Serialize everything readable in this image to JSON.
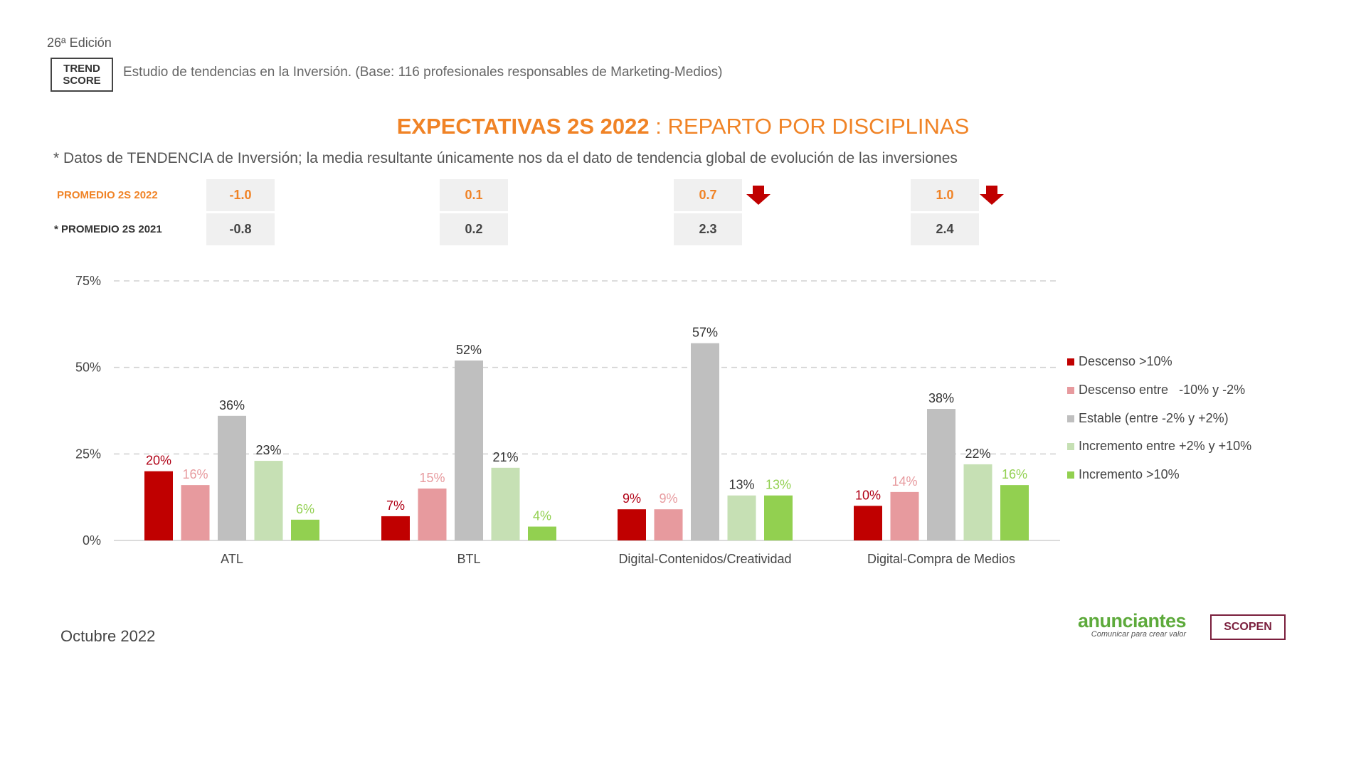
{
  "header": {
    "edition": "26ª Edición",
    "logo_line1": "TREND",
    "logo_line2": "SCORE",
    "study": "Estudio de tendencias en la Inversión. (Base: 116 profesionales responsables de Marketing-Medios)"
  },
  "title_bold": "EXPECTATIVAS 2S 2022",
  "title_rest": " : REPARTO POR DISCIPLINAS",
  "note": "* Datos de TENDENCIA de Inversión; la media resultante únicamente nos da el dato de tendencia global de evolución de las inversiones",
  "averages": {
    "label_2022": "PROMEDIO 2S 2022",
    "label_2021": "* PROMEDIO 2S 2021",
    "values_2022": [
      "-1.0",
      "0.1",
      "0.7",
      "1.0"
    ],
    "values_2021": [
      "-0.8",
      "0.2",
      "2.3",
      "2.4"
    ],
    "down_arrows": [
      false,
      false,
      true,
      true
    ],
    "arrow_color": "#c00000"
  },
  "chart_data": {
    "type": "bar",
    "categories": [
      "ATL",
      "BTL",
      "Digital-Contenidos/Creatividad",
      "Digital-Compra de Medios"
    ],
    "series": [
      {
        "name": "Descenso >10%",
        "color": "#c00000",
        "label_color": "#b00015",
        "values": [
          20,
          7,
          9,
          10
        ]
      },
      {
        "name": "Descenso entre   -10% y -2%",
        "color": "#e79a9e",
        "label_color": "#e79a9e",
        "values": [
          16,
          15,
          9,
          14
        ]
      },
      {
        "name": "Estable (entre -2% y +2%)",
        "color": "#bfbfbf",
        "label_color": "#333333",
        "values": [
          36,
          52,
          57,
          38
        ]
      },
      {
        "name": "Incremento entre +2% y +10%",
        "color": "#c6e0b4",
        "label_color": "#333333",
        "values": [
          23,
          21,
          13,
          22
        ]
      },
      {
        "name": "Incremento >10%",
        "color": "#92d050",
        "label_color": "#92d050",
        "values": [
          6,
          4,
          13,
          16
        ]
      }
    ],
    "y_ticks": [
      "0%",
      "25%",
      "50%",
      "75%"
    ],
    "ylim": [
      0,
      75
    ],
    "grid": true,
    "legend_position": "right"
  },
  "footer": {
    "date": "Octubre 2022",
    "anunciantes": "anunciantes",
    "anunciantes_tagline": "Comunicar para crear valor",
    "scopen": "SCOPEN"
  }
}
